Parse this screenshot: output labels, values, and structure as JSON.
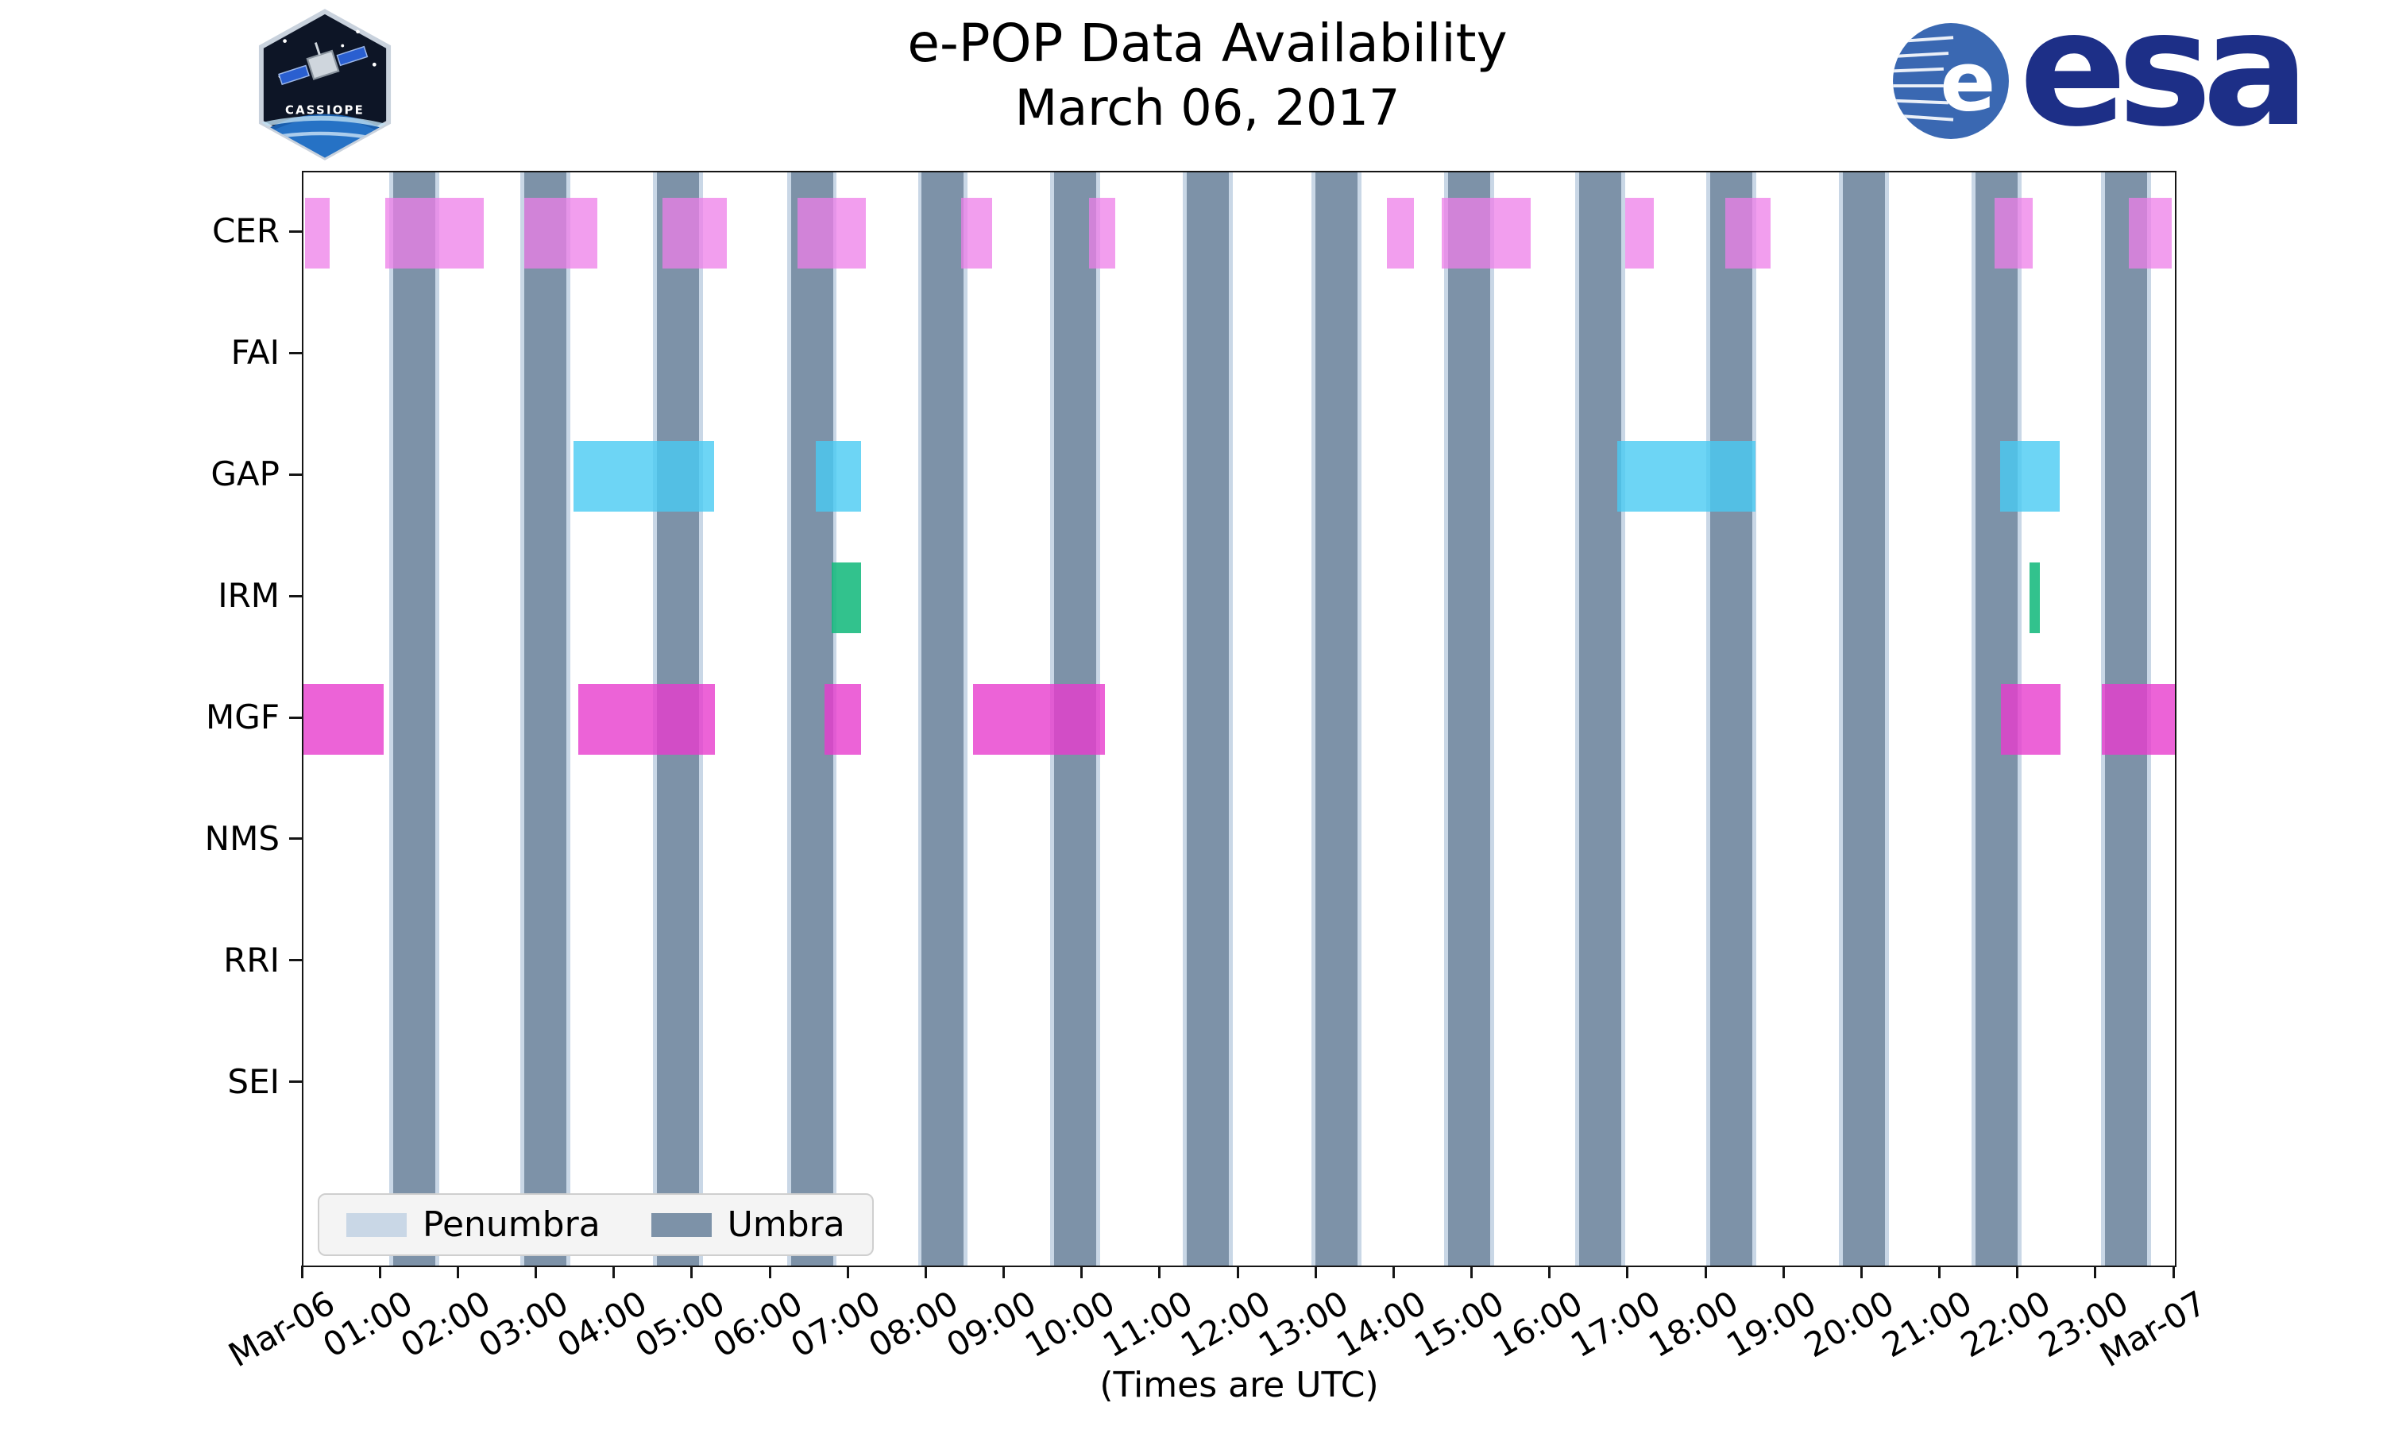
{
  "header": {
    "title": "e-POP Data Availability",
    "subtitle": "March 06, 2017"
  },
  "logos": {
    "cassiope": {
      "text": "CASSIOPE"
    },
    "esa": {
      "wordmark": "esa",
      "emblem_letter": "e"
    }
  },
  "chart_data": {
    "type": "timeline",
    "title": "e-POP Data Availability",
    "subtitle": "March 06, 2017",
    "xlabel": "(Times are UTC)",
    "x_range_hours": [
      0,
      24
    ],
    "x_ticks": [
      {
        "hour": 0,
        "label": "Mar-06"
      },
      {
        "hour": 1,
        "label": "01:00"
      },
      {
        "hour": 2,
        "label": "02:00"
      },
      {
        "hour": 3,
        "label": "03:00"
      },
      {
        "hour": 4,
        "label": "04:00"
      },
      {
        "hour": 5,
        "label": "05:00"
      },
      {
        "hour": 6,
        "label": "06:00"
      },
      {
        "hour": 7,
        "label": "07:00"
      },
      {
        "hour": 8,
        "label": "08:00"
      },
      {
        "hour": 9,
        "label": "09:00"
      },
      {
        "hour": 10,
        "label": "10:00"
      },
      {
        "hour": 11,
        "label": "11:00"
      },
      {
        "hour": 12,
        "label": "12:00"
      },
      {
        "hour": 13,
        "label": "13:00"
      },
      {
        "hour": 14,
        "label": "14:00"
      },
      {
        "hour": 15,
        "label": "15:00"
      },
      {
        "hour": 16,
        "label": "16:00"
      },
      {
        "hour": 17,
        "label": "17:00"
      },
      {
        "hour": 18,
        "label": "18:00"
      },
      {
        "hour": 19,
        "label": "19:00"
      },
      {
        "hour": 20,
        "label": "20:00"
      },
      {
        "hour": 21,
        "label": "21:00"
      },
      {
        "hour": 22,
        "label": "22:00"
      },
      {
        "hour": 23,
        "label": "23:00"
      },
      {
        "hour": 24,
        "label": "Mar-07"
      }
    ],
    "rows": [
      {
        "label": "CER",
        "color": "rgba(238,125,232,0.75)",
        "intervals": [
          [
            0.02,
            0.34
          ],
          [
            1.05,
            2.31
          ],
          [
            2.83,
            3.77
          ],
          [
            4.6,
            5.43
          ],
          [
            6.34,
            7.21
          ],
          [
            8.43,
            8.83
          ],
          [
            10.07,
            10.41
          ],
          [
            13.89,
            14.24
          ],
          [
            14.6,
            15.74
          ],
          [
            16.95,
            17.32
          ],
          [
            18.23,
            18.82
          ],
          [
            21.69,
            22.18
          ],
          [
            23.41,
            23.96
          ]
        ]
      },
      {
        "label": "FAI",
        "color": "rgba(250,170,110,0.8)",
        "intervals": []
      },
      {
        "label": "GAP",
        "color": "rgba(72,203,242,0.8)",
        "intervals": [
          [
            3.46,
            5.27
          ],
          [
            6.57,
            7.15
          ],
          [
            16.85,
            18.62
          ],
          [
            21.76,
            22.52
          ]
        ]
      },
      {
        "label": "IRM",
        "color": "rgba(22,185,125,0.88)",
        "intervals": [
          [
            6.77,
            7.15
          ],
          [
            22.14,
            22.27
          ]
        ]
      },
      {
        "label": "MGF",
        "color": "rgba(231,60,205,0.8)",
        "intervals": [
          [
            0.0,
            1.03
          ],
          [
            3.52,
            5.28
          ],
          [
            6.68,
            7.15
          ],
          [
            8.59,
            10.28
          ],
          [
            21.77,
            22.53
          ],
          [
            23.06,
            24.0
          ]
        ]
      },
      {
        "label": "NMS",
        "color": "rgba(150,150,150,0.8)",
        "intervals": []
      },
      {
        "label": "RRI",
        "color": "rgba(150,150,150,0.8)",
        "intervals": []
      },
      {
        "label": "SEI",
        "color": "rgba(150,150,150,0.8)",
        "intervals": []
      }
    ],
    "shadow": {
      "umbra": {
        "label": "Umbra",
        "color": "#7d92a8",
        "intervals": [
          [
            1.15,
            1.69
          ],
          [
            2.83,
            3.37
          ],
          [
            4.53,
            5.07
          ],
          [
            6.25,
            6.79
          ],
          [
            7.93,
            8.47
          ],
          [
            9.63,
            10.17
          ],
          [
            11.33,
            11.87
          ],
          [
            12.98,
            13.52
          ],
          [
            14.68,
            15.22
          ],
          [
            16.36,
            16.9
          ],
          [
            18.04,
            18.58
          ],
          [
            19.74,
            20.28
          ],
          [
            21.44,
            21.98
          ],
          [
            23.1,
            23.64
          ]
        ]
      },
      "penumbra": {
        "label": "Penumbra",
        "color": "#c9d7e6",
        "intervals": [
          [
            1.1,
            1.15
          ],
          [
            1.69,
            1.74
          ],
          [
            2.78,
            2.83
          ],
          [
            3.37,
            3.42
          ],
          [
            4.48,
            4.53
          ],
          [
            5.07,
            5.12
          ],
          [
            6.2,
            6.25
          ],
          [
            6.79,
            6.84
          ],
          [
            7.88,
            7.93
          ],
          [
            8.47,
            8.52
          ],
          [
            9.58,
            9.63
          ],
          [
            10.17,
            10.22
          ],
          [
            11.28,
            11.33
          ],
          [
            11.87,
            11.92
          ],
          [
            12.93,
            12.98
          ],
          [
            13.52,
            13.57
          ],
          [
            14.63,
            14.68
          ],
          [
            15.22,
            15.27
          ],
          [
            16.31,
            16.36
          ],
          [
            16.9,
            16.95
          ],
          [
            17.99,
            18.04
          ],
          [
            18.58,
            18.63
          ],
          [
            19.69,
            19.74
          ],
          [
            20.28,
            20.33
          ],
          [
            21.39,
            21.44
          ],
          [
            21.98,
            22.03
          ],
          [
            23.05,
            23.1
          ],
          [
            23.64,
            23.69
          ]
        ]
      }
    },
    "legend": {
      "position": "lower left",
      "items": [
        {
          "label": "Penumbra",
          "color": "#c9d7e6"
        },
        {
          "label": "Umbra",
          "color": "#7d92a8"
        }
      ]
    }
  }
}
